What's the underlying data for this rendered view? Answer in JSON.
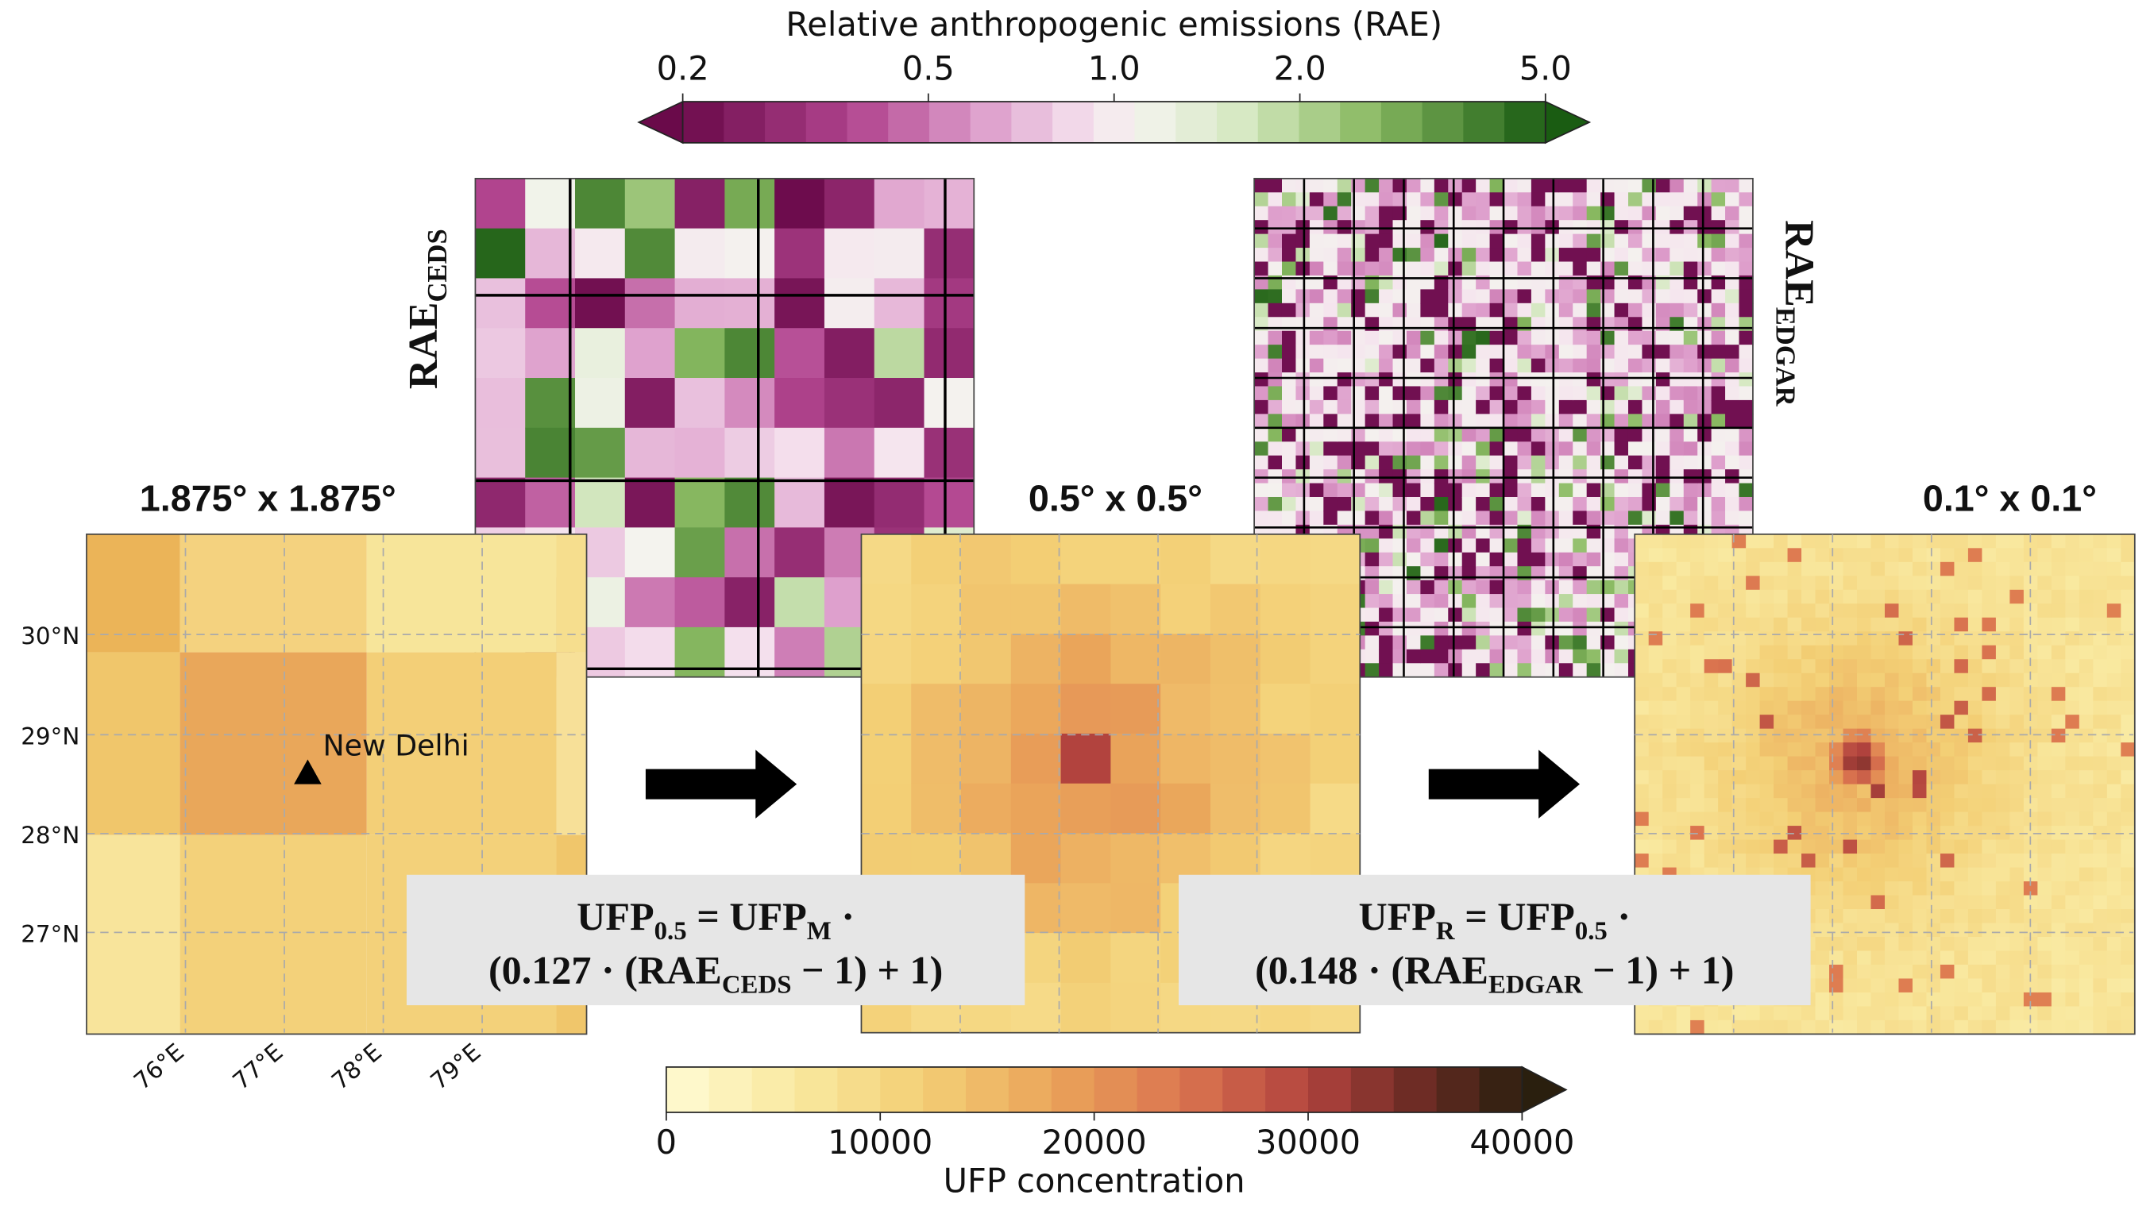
{
  "colorbars": [
    {
      "title": "Relative anthropogenic emissions (RAE)",
      "lim": [
        0.2,
        5
      ],
      "log": true,
      "ticks": [
        0.2,
        0.5,
        {
          "value": 1,
          "label": "1.0"
        },
        {
          "value": 2,
          "label": "2.0"
        },
        {
          "value": 5,
          "label": "5.0"
        }
      ]
    },
    {
      "title": "UFP concentration",
      "lim": [
        0,
        40000
      ],
      "log": false,
      "ticks": [
        0,
        10000,
        20000,
        30000,
        40000
      ]
    }
  ],
  "rae_labels": [
    [
      "RAE",
      "CEDS"
    ],
    [
      "RAE",
      "EDGAR"
    ]
  ],
  "panels": [
    "1.875° x 1.875°",
    "0.5° x 0.5°",
    "0.1° x 0.1°"
  ],
  "lat_labels": [
    "30°N",
    "29°N",
    "28°N",
    "27°N"
  ],
  "lon_labels": [
    "76°E",
    "77°E",
    "78°E",
    "79°E"
  ],
  "annotation": "New Delhi",
  "equations": [
    [
      [
        "UFP",
        "0.5",
        " = UFP",
        "M",
        " ·"
      ],
      [
        "(0.127  ·  (RAE",
        "CEDS",
        " − 1) + 1)"
      ]
    ],
    [
      [
        "UFP",
        "R",
        " = UFP",
        "0.5",
        "  ·"
      ],
      [
        "(0.148 · (RAE",
        "EDGAR",
        " − 1) + 1)"
      ]
    ]
  ]
}
